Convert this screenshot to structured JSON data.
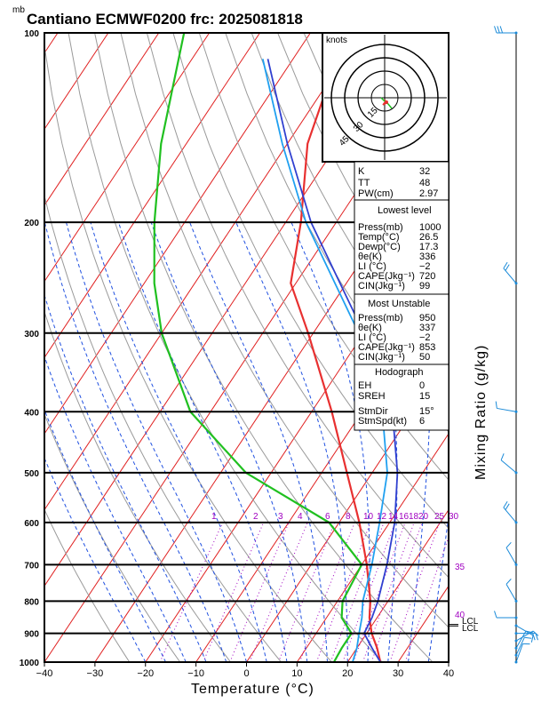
{
  "title": "Cantiano ECMWF0200  frc: 2025081818",
  "pressure_unit": "mb",
  "xlabel": "Temperature (°C)",
  "right_label": "Mixing Ratio  (g/kg)",
  "hodograph": {
    "unit": "knots",
    "rings": [
      "15",
      "30",
      "45"
    ]
  },
  "mixing_ratio_labels": [
    "1",
    "2",
    "3",
    "4",
    "6",
    "8",
    "10",
    "12",
    "14",
    "16",
    "18",
    "20",
    "25",
    "30"
  ],
  "isotherm_right_labels": [
    "35",
    "40"
  ],
  "level_labels": [
    "LCL",
    "LCL"
  ],
  "indices": {
    "top": [
      [
        "K",
        "32"
      ],
      [
        "TT",
        "48"
      ],
      [
        "PW(cm)",
        "2.97"
      ]
    ],
    "lowest_title": "Lowest level",
    "lowest": [
      [
        "Press(mb)",
        "1000"
      ],
      [
        "Temp(°C)",
        "26.5"
      ],
      [
        "Dewp(°C)",
        "17.3"
      ],
      [
        "θe(K)",
        "336"
      ],
      [
        "LI (°C)",
        "−2"
      ],
      [
        "CAPE(Jkg⁻¹)",
        "720"
      ],
      [
        "CIN(Jkg⁻¹)",
        "99"
      ]
    ],
    "mu_title": "Most Unstable",
    "mu": [
      [
        "Press(mb)",
        "950"
      ],
      [
        "θe(K)",
        "337"
      ],
      [
        "LI (°C)",
        "−2"
      ],
      [
        "CAPE(Jkg⁻¹)",
        "853"
      ],
      [
        "CIN(Jkg⁻¹)",
        "50"
      ]
    ],
    "hodo_title": "Hodograph",
    "hodo": [
      [
        "EH",
        "0"
      ],
      [
        "SREH",
        "15"
      ],
      [
        "StmDir",
        "15°"
      ],
      [
        "StmSpd(kt)",
        "6"
      ]
    ]
  },
  "colors": {
    "temperature": "#e83030",
    "dewpoint": "#20c020",
    "parcel": "#3040d0",
    "wetbulb": "#20a0f0",
    "isotherm": "#e02020",
    "dry_adiabat": "#9a9a9a",
    "moist_adiabat": "#2050e0",
    "mixing_ratio": "#a000c0",
    "wind": "#1a8ad8"
  },
  "chart_data": {
    "type": "skew-t",
    "title": "Cantiano ECMWF0200  frc: 2025081818",
    "xlabel": "Temperature (°C)",
    "ylabel": "mb",
    "x_ticks": [
      -40,
      -30,
      -20,
      -10,
      0,
      10,
      20,
      30,
      40
    ],
    "y_ticks": [
      100,
      200,
      300,
      400,
      500,
      600,
      700,
      800,
      900,
      1000
    ],
    "xlim": [
      -40,
      40
    ],
    "ylim": [
      1000,
      100
    ],
    "series": [
      {
        "id": "temperature",
        "points": [
          [
            1000,
            26.5
          ],
          [
            950,
            24
          ],
          [
            900,
            21
          ],
          [
            850,
            18.5
          ],
          [
            800,
            16.5
          ],
          [
            700,
            11
          ],
          [
            600,
            4
          ],
          [
            500,
            -5
          ],
          [
            400,
            -16
          ],
          [
            300,
            -31
          ],
          [
            250,
            -41
          ],
          [
            200,
            -47
          ],
          [
            150,
            -56
          ],
          [
            100,
            -63
          ]
        ]
      },
      {
        "id": "dewpoint",
        "points": [
          [
            1000,
            17.3
          ],
          [
            950,
            17
          ],
          [
            900,
            17
          ],
          [
            850,
            13
          ],
          [
            800,
            11
          ],
          [
            700,
            10
          ],
          [
            600,
            -2
          ],
          [
            500,
            -25
          ],
          [
            400,
            -44
          ],
          [
            300,
            -60
          ],
          [
            250,
            -68
          ],
          [
            200,
            -76
          ],
          [
            150,
            -85
          ],
          [
            100,
            -95
          ]
        ]
      },
      {
        "id": "parcel",
        "points": [
          [
            1000,
            26.5
          ],
          [
            950,
            23
          ],
          [
            900,
            19.5
          ],
          [
            850,
            19
          ],
          [
            800,
            18
          ],
          [
            700,
            15
          ],
          [
            600,
            11
          ],
          [
            500,
            5
          ],
          [
            400,
            -4
          ],
          [
            300,
            -20
          ],
          [
            200,
            -45
          ],
          [
            150,
            -60
          ],
          [
            110,
            -75
          ]
        ]
      },
      {
        "id": "wetbulb",
        "points": [
          [
            1000,
            21
          ],
          [
            950,
            20
          ],
          [
            900,
            18.5
          ],
          [
            850,
            17
          ],
          [
            800,
            15
          ],
          [
            700,
            12
          ],
          [
            600,
            8
          ],
          [
            500,
            3
          ],
          [
            400,
            -6
          ],
          [
            300,
            -21
          ],
          [
            200,
            -46
          ],
          [
            150,
            -61
          ],
          [
            110,
            -76
          ]
        ]
      }
    ],
    "wind_barbs": [
      [
        1000,
        20,
        5
      ],
      [
        975,
        25,
        5
      ],
      [
        950,
        30,
        10
      ],
      [
        925,
        60,
        10
      ],
      [
        900,
        90,
        15
      ],
      [
        875,
        120,
        10
      ],
      [
        850,
        270,
        5
      ],
      [
        800,
        330,
        10
      ],
      [
        700,
        330,
        10
      ],
      [
        600,
        320,
        15
      ],
      [
        500,
        310,
        10
      ],
      [
        400,
        280,
        5
      ],
      [
        250,
        320,
        20
      ],
      [
        100,
        270,
        30
      ]
    ]
  }
}
